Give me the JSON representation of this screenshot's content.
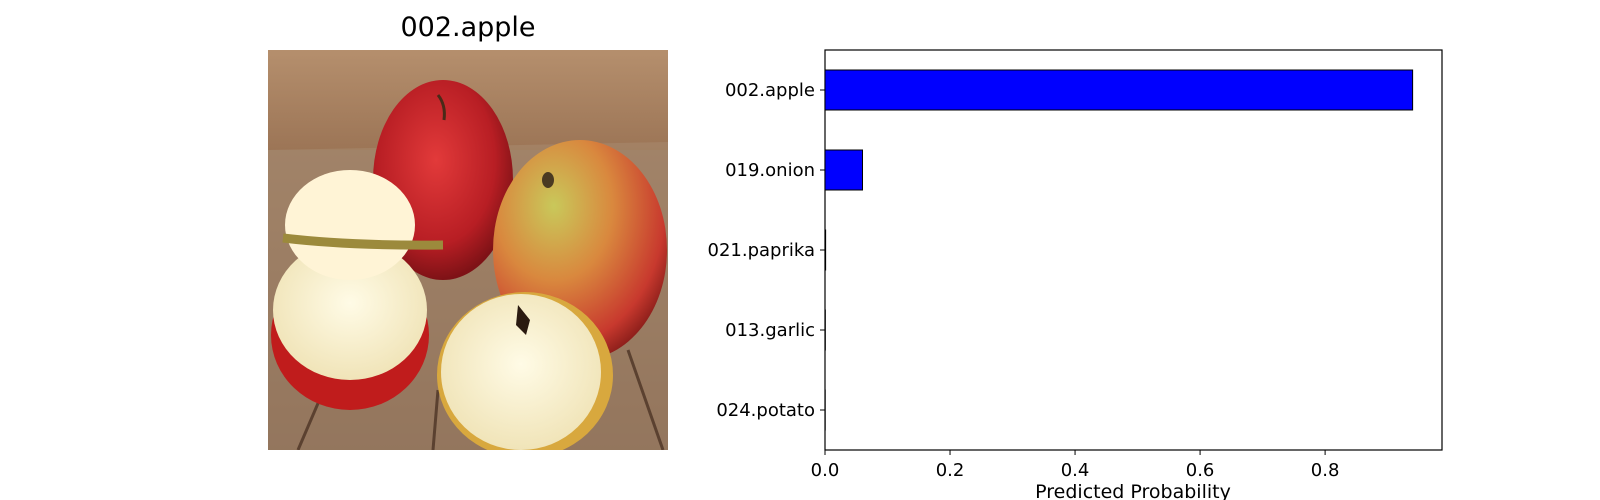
{
  "image_panel": {
    "title": "002.apple",
    "picture": "photo of red apples, two halves cut open, on a wooden table"
  },
  "chart_data": {
    "type": "bar",
    "orientation": "horizontal",
    "title": "",
    "xlabel": "Predicted Probability",
    "ylabel": "",
    "categories": [
      "002.apple",
      "019.onion",
      "021.paprika",
      "013.garlic",
      "024.potato"
    ],
    "values": [
      0.94,
      0.06,
      0.001,
      0.0005,
      0.0003
    ],
    "xlim": [
      0,
      0.987
    ],
    "xticks": [
      0.0,
      0.2,
      0.4,
      0.6,
      0.8
    ],
    "xtick_labels": [
      "0.0",
      "0.2",
      "0.4",
      "0.6",
      "0.8"
    ],
    "bar_color": "#0000ff",
    "bar_edge_color": "#000000",
    "grid": false,
    "legend": "none"
  }
}
